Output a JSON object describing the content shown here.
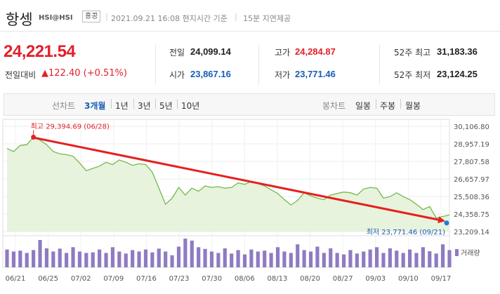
{
  "header": {
    "title": "항셍",
    "code": "HSI@HSI",
    "country": "홍콩",
    "datetime": "2021.09.21 16:08 현지시간 기준",
    "delay": "15분 지연제공"
  },
  "quote": {
    "price": "24,221.54",
    "change_label": "전일대비",
    "change_value": "▲122.40 (+0.51%)",
    "up_color": "#e2202a",
    "down_color": "#1a5db5"
  },
  "stats": [
    {
      "label": "전일",
      "value": "24,099.14",
      "tone": "default"
    },
    {
      "label": "고가",
      "value": "24,284.87",
      "tone": "up"
    },
    {
      "label": "52주 최고",
      "value": "31,183.36",
      "tone": "default"
    },
    {
      "label": "시가",
      "value": "23,867.16",
      "tone": "down"
    },
    {
      "label": "저가",
      "value": "23,771.46",
      "tone": "down"
    },
    {
      "label": "52주 최저",
      "value": "23,124.25",
      "tone": "default"
    }
  ],
  "period_bar": {
    "line_label": "선차트",
    "line_periods": [
      "3개월",
      "1년",
      "3년",
      "5년",
      "10년"
    ],
    "active_period": "3개월",
    "candle_label": "봉차트",
    "candle_periods": [
      "일봉",
      "주봉",
      "월봉"
    ]
  },
  "chart_data": {
    "type": "area",
    "x_ticks": [
      "06/21",
      "06/25",
      "07/02",
      "07/09",
      "07/16",
      "07/23",
      "07/30",
      "08/06",
      "08/13",
      "08/20",
      "08/27",
      "09/03",
      "09/10",
      "09/17"
    ],
    "y_ticks": [
      "30,106.80",
      "28,957.19",
      "27,807.58",
      "26,657.97",
      "25,508.36",
      "24,358.75",
      "23,209.14"
    ],
    "ylim": [
      23209.14,
      30106.8
    ],
    "values": [
      28650,
      28450,
      28850,
      28900,
      29395,
      29200,
      28900,
      28450,
      28300,
      28250,
      28150,
      27700,
      27200,
      27350,
      27500,
      27750,
      27600,
      27900,
      27750,
      27550,
      27650,
      27600,
      27100,
      26050,
      25000,
      25400,
      26100,
      25600,
      26050,
      25850,
      26200,
      26100,
      26150,
      26050,
      26100,
      26400,
      26300,
      26500,
      26350,
      26200,
      25950,
      25700,
      25300,
      24950,
      25250,
      25750,
      25550,
      25400,
      25300,
      25600,
      25700,
      25800,
      25750,
      25600,
      26000,
      26100,
      26050,
      25400,
      25500,
      25750,
      25500,
      25300,
      25000,
      24650,
      24850,
      24100,
      24200,
      24300
    ],
    "high_label": "최고 29,394.69 (06/28)",
    "low_label": "최저 23,771.46 (09/21)",
    "volume_label": "거래량",
    "volume": [
      0.62,
      0.55,
      0.58,
      0.5,
      0.6,
      0.95,
      0.66,
      0.55,
      0.65,
      0.5,
      0.7,
      0.55,
      0.5,
      0.52,
      0.62,
      0.5,
      0.7,
      0.55,
      0.48,
      0.6,
      0.55,
      0.62,
      0.52,
      0.65,
      0.55,
      0.42,
      0.72,
      1.0,
      0.93,
      0.7,
      0.64,
      0.55,
      0.5,
      0.66,
      0.48,
      0.6,
      0.45,
      0.62,
      0.55,
      0.58,
      0.5,
      0.7,
      0.55,
      0.5,
      0.8,
      0.6,
      0.55,
      0.72,
      0.5,
      0.66,
      0.5,
      0.45,
      0.6,
      0.48,
      0.55,
      0.62,
      0.7,
      0.5,
      0.66,
      0.58,
      0.5,
      0.62,
      0.5,
      0.7,
      0.56,
      0.48,
      0.8,
      0.6
    ],
    "line_color": "#74b94e",
    "fill_color": "#e7f3dc",
    "volume_color": "#8e7bc2",
    "trend_arrow_color": "#e62020"
  }
}
